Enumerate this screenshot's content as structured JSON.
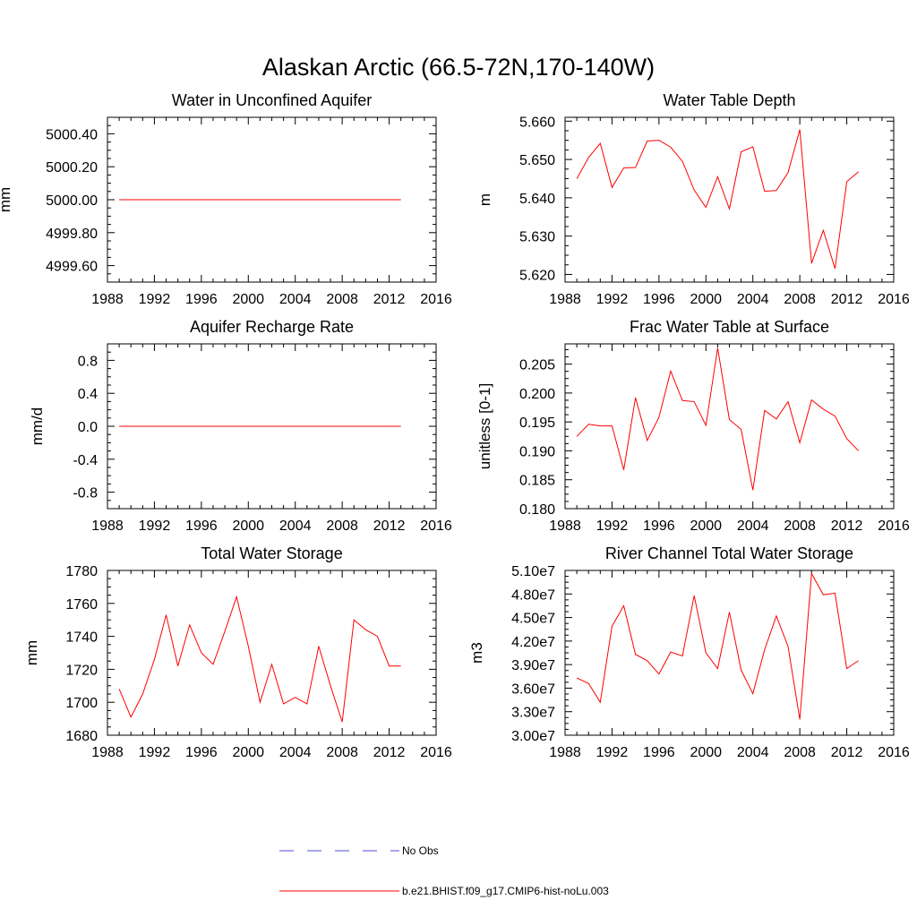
{
  "figure": {
    "title": "Alaskan Arctic (66.5-72N,170-140W)"
  },
  "legend": {
    "entries": [
      {
        "label": "No Obs",
        "color": "#4b4bd8",
        "style": "dashed"
      },
      {
        "label": "b.e21.BHIST.f09_g17.CMIP6-hist-noLu.003",
        "color": "#ff0000",
        "style": "solid"
      }
    ]
  },
  "colors": {
    "series": "#ff0000",
    "axes": "#000000"
  },
  "chart_data": [
    {
      "type": "line",
      "title": "Water in Unconfined Aquifer",
      "ylabel": "mm",
      "xlim": [
        1988,
        2016
      ],
      "ylim": [
        4999.5,
        5000.5
      ],
      "xticks": [
        1988,
        1992,
        1996,
        2000,
        2004,
        2008,
        2012,
        2016
      ],
      "yticks": [
        4999.6,
        4999.8,
        5000.0,
        5000.2,
        5000.4
      ],
      "ytick_labels": [
        "4999.60",
        "4999.80",
        "5000.00",
        "5000.20",
        "5000.40"
      ],
      "x": [
        1989,
        1990,
        1991,
        1992,
        1993,
        1994,
        1995,
        1996,
        1997,
        1998,
        1999,
        2000,
        2001,
        2002,
        2003,
        2004,
        2005,
        2006,
        2007,
        2008,
        2009,
        2010,
        2011,
        2012,
        2013
      ],
      "series": [
        {
          "name": "b.e21.BHIST.f09_g17.CMIP6-hist-noLu.003",
          "values": [
            5000,
            5000,
            5000,
            5000,
            5000,
            5000,
            5000,
            5000,
            5000,
            5000,
            5000,
            5000,
            5000,
            5000,
            5000,
            5000,
            5000,
            5000,
            5000,
            5000,
            5000,
            5000,
            5000,
            5000,
            5000
          ]
        }
      ]
    },
    {
      "type": "line",
      "title": "Water Table Depth",
      "ylabel": "m",
      "xlim": [
        1988,
        2016
      ],
      "ylim": [
        5.618,
        5.661
      ],
      "xticks": [
        1988,
        1992,
        1996,
        2000,
        2004,
        2008,
        2012,
        2016
      ],
      "yticks": [
        5.62,
        5.63,
        5.64,
        5.65,
        5.66
      ],
      "ytick_labels": [
        "5.620",
        "5.630",
        "5.640",
        "5.650",
        "5.660"
      ],
      "x": [
        1989,
        1990,
        1991,
        1992,
        1993,
        1994,
        1995,
        1996,
        1997,
        1998,
        1999,
        2000,
        2001,
        2002,
        2003,
        2004,
        2005,
        2006,
        2007,
        2008,
        2009,
        2010,
        2011,
        2012,
        2013
      ],
      "series": [
        {
          "name": "b.e21.BHIST.f09_g17.CMIP6-hist-noLu.003",
          "values": [
            5.645,
            5.6505,
            5.6542,
            5.6427,
            5.6478,
            5.6479,
            5.6548,
            5.655,
            5.6532,
            5.6495,
            5.642,
            5.6375,
            5.6455,
            5.6371,
            5.652,
            5.6533,
            5.6417,
            5.6419,
            5.6466,
            5.6578,
            5.6229,
            5.6315,
            5.6215,
            5.6442,
            5.6468
          ]
        }
      ]
    },
    {
      "type": "line",
      "title": "Aquifer Recharge Rate",
      "ylabel": "mm/d",
      "xlim": [
        1988,
        2016
      ],
      "ylim": [
        -1.0,
        1.0
      ],
      "xticks": [
        1988,
        1992,
        1996,
        2000,
        2004,
        2008,
        2012,
        2016
      ],
      "yticks": [
        -0.8,
        -0.4,
        0.0,
        0.4,
        0.8
      ],
      "ytick_labels": [
        "-0.8",
        "-0.4",
        "0.0",
        "0.4",
        "0.8"
      ],
      "x": [
        1989,
        1990,
        1991,
        1992,
        1993,
        1994,
        1995,
        1996,
        1997,
        1998,
        1999,
        2000,
        2001,
        2002,
        2003,
        2004,
        2005,
        2006,
        2007,
        2008,
        2009,
        2010,
        2011,
        2012,
        2013
      ],
      "series": [
        {
          "name": "b.e21.BHIST.f09_g17.CMIP6-hist-noLu.003",
          "values": [
            0,
            0,
            0,
            0,
            0,
            0,
            0,
            0,
            0,
            0,
            0,
            0,
            0,
            0,
            0,
            0,
            0,
            0,
            0,
            0,
            0,
            0,
            0,
            0,
            0
          ]
        }
      ]
    },
    {
      "type": "line",
      "title": "Frac Water Table at Surface",
      "ylabel": "unitless [0-1]",
      "xlim": [
        1988,
        2016
      ],
      "ylim": [
        0.18,
        0.2085
      ],
      "xticks": [
        1988,
        1992,
        1996,
        2000,
        2004,
        2008,
        2012,
        2016
      ],
      "yticks": [
        0.18,
        0.185,
        0.19,
        0.195,
        0.2,
        0.205
      ],
      "ytick_labels": [
        "0.180",
        "0.185",
        "0.190",
        "0.195",
        "0.200",
        "0.205"
      ],
      "x": [
        1989,
        1990,
        1991,
        1992,
        1993,
        1994,
        1995,
        1996,
        1997,
        1998,
        1999,
        2000,
        2001,
        2002,
        2003,
        2004,
        2005,
        2006,
        2007,
        2008,
        2009,
        2010,
        2011,
        2012,
        2013
      ],
      "series": [
        {
          "name": "b.e21.BHIST.f09_g17.CMIP6-hist-noLu.003",
          "values": [
            0.1925,
            0.1946,
            0.1943,
            0.1943,
            0.1867,
            0.1992,
            0.1918,
            0.1958,
            0.2038,
            0.1987,
            0.1985,
            0.1944,
            0.2078,
            0.1954,
            0.1937,
            0.1832,
            0.197,
            0.1955,
            0.1985,
            0.1914,
            0.1988,
            0.1972,
            0.196,
            0.1921,
            0.19
          ]
        }
      ]
    },
    {
      "type": "line",
      "title": "Total Water Storage",
      "ylabel": "mm",
      "xlim": [
        1988,
        2016
      ],
      "ylim": [
        1680,
        1780
      ],
      "xticks": [
        1988,
        1992,
        1996,
        2000,
        2004,
        2008,
        2012,
        2016
      ],
      "yticks": [
        1680,
        1700,
        1720,
        1740,
        1760,
        1780
      ],
      "ytick_labels": [
        "1680",
        "1700",
        "1720",
        "1740",
        "1760",
        "1780"
      ],
      "x": [
        1989,
        1990,
        1991,
        1992,
        1993,
        1994,
        1995,
        1996,
        1997,
        1998,
        1999,
        2000,
        2001,
        2002,
        2003,
        2004,
        2005,
        2006,
        2007,
        2008,
        2009,
        2010,
        2011,
        2012,
        2013
      ],
      "series": [
        {
          "name": "b.e21.BHIST.f09_g17.CMIP6-hist-noLu.003",
          "values": [
            1708,
            1691,
            1705,
            1726,
            1753,
            1722,
            1747,
            1730,
            1723,
            1743,
            1764,
            1734,
            1700,
            1723,
            1699,
            1703,
            1699,
            1734,
            1710,
            1688,
            1750,
            1744,
            1740,
            1722,
            1722
          ]
        }
      ]
    },
    {
      "type": "line",
      "title": "River Channel Total Water Storage",
      "ylabel": "m3",
      "xlim": [
        1988,
        2016
      ],
      "ylim": [
        30000000,
        51000000
      ],
      "xticks": [
        1988,
        1992,
        1996,
        2000,
        2004,
        2008,
        2012,
        2016
      ],
      "yticks": [
        30000000,
        33000000,
        36000000,
        39000000,
        42000000,
        45000000,
        48000000,
        51000000
      ],
      "ytick_labels": [
        "3.00e7",
        "3.30e7",
        "3.60e7",
        "3.90e7",
        "4.20e7",
        "4.50e7",
        "4.80e7",
        "5.10e7"
      ],
      "x": [
        1989,
        1990,
        1991,
        1992,
        1993,
        1994,
        1995,
        1996,
        1997,
        1998,
        1999,
        2000,
        2001,
        2002,
        2003,
        2004,
        2005,
        2006,
        2007,
        2008,
        2009,
        2010,
        2011,
        2012,
        2013
      ],
      "series": [
        {
          "name": "b.e21.BHIST.f09_g17.CMIP6-hist-noLu.003",
          "values": [
            37300000,
            36600000,
            34200000,
            43900000,
            46500000,
            40300000,
            39500000,
            37800000,
            40600000,
            40100000,
            47800000,
            40500000,
            38500000,
            45700000,
            38300000,
            35300000,
            40900000,
            45200000,
            41300000,
            32000000,
            50600000,
            47900000,
            48100000,
            38500000,
            39500000
          ]
        }
      ]
    }
  ]
}
